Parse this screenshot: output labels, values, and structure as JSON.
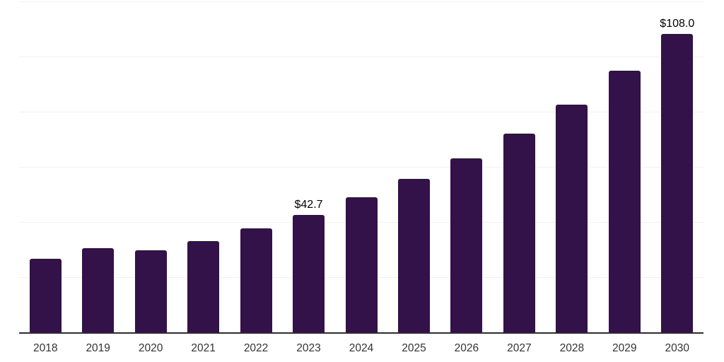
{
  "chart_data": {
    "type": "bar",
    "title": "",
    "xlabel": "",
    "ylabel": "",
    "categories": [
      "2018",
      "2019",
      "2020",
      "2021",
      "2022",
      "2023",
      "2024",
      "2025",
      "2026",
      "2027",
      "2028",
      "2029",
      "2030"
    ],
    "values": [
      26.7,
      30.5,
      29.9,
      33.1,
      37.7,
      42.7,
      48.9,
      55.6,
      63.0,
      71.9,
      82.4,
      94.8,
      108.0
    ],
    "data_labels": {
      "2023": "$42.7",
      "2030": "$108.0"
    },
    "ylim": [
      0,
      120
    ],
    "grid_step": 20,
    "grid": true,
    "legend_position": "none",
    "colors": {
      "bar": "#331149",
      "gridline": "#f1f1f1",
      "axis_line": "#2d2d2d",
      "data_label": "#000000",
      "tick_label": "#333333",
      "background": "#ffffff"
    }
  }
}
